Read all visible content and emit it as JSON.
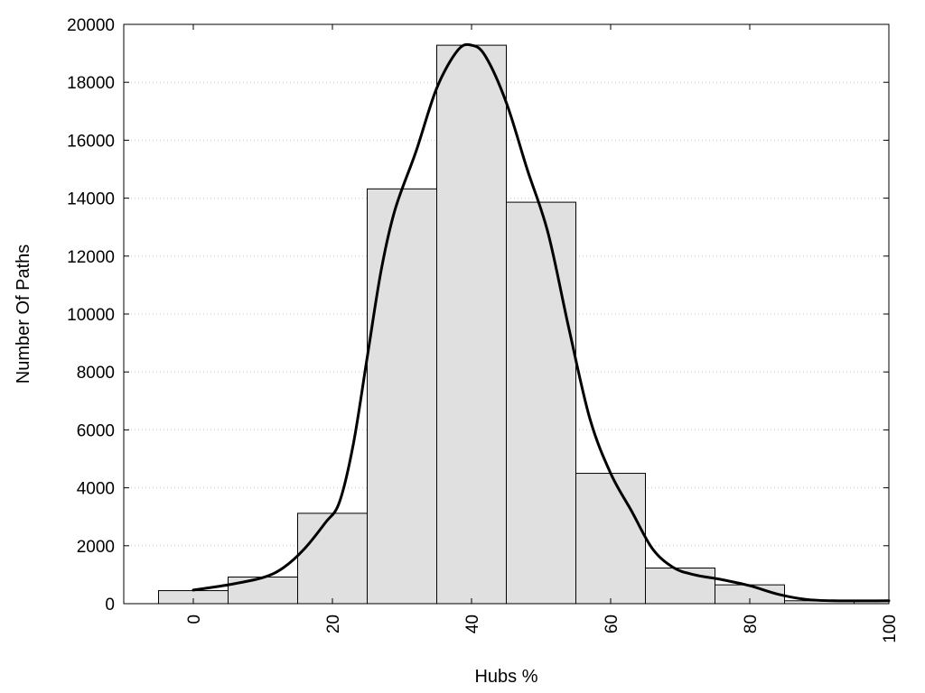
{
  "chart_data": {
    "type": "bar",
    "subtype": "histogram",
    "title": "",
    "xlabel": "Hubs %",
    "ylabel": "Number Of Paths",
    "xlim": [
      -10,
      100
    ],
    "ylim": [
      0,
      20000
    ],
    "x_ticks": [
      0,
      20,
      40,
      60,
      80,
      100
    ],
    "y_ticks": [
      0,
      2000,
      4000,
      6000,
      8000,
      10000,
      12000,
      14000,
      16000,
      18000,
      20000
    ],
    "grid": "horizontal-dotted",
    "bar_color": "#e0e0e0",
    "bar_edge_color": "#000000",
    "curve_color": "#000000",
    "bin_width": 10,
    "bins": [
      {
        "center": 0,
        "value": 450
      },
      {
        "center": 10,
        "value": 920
      },
      {
        "center": 20,
        "value": 3120
      },
      {
        "center": 30,
        "value": 14320
      },
      {
        "center": 40,
        "value": 19280
      },
      {
        "center": 50,
        "value": 13860
      },
      {
        "center": 60,
        "value": 4500
      },
      {
        "center": 70,
        "value": 1230
      },
      {
        "center": 80,
        "value": 650
      },
      {
        "center": 90,
        "value": 100
      },
      {
        "center": 100,
        "value": 100
      }
    ],
    "density_curve": [
      {
        "x": 0,
        "y": 470
      },
      {
        "x": 5,
        "y": 650
      },
      {
        "x": 10,
        "y": 900
      },
      {
        "x": 13,
        "y": 1250
      },
      {
        "x": 16,
        "y": 1900
      },
      {
        "x": 19,
        "y": 2800
      },
      {
        "x": 21,
        "y": 3500
      },
      {
        "x": 23,
        "y": 5500
      },
      {
        "x": 25,
        "y": 8500
      },
      {
        "x": 27,
        "y": 11500
      },
      {
        "x": 29,
        "y": 13600
      },
      {
        "x": 32,
        "y": 15600
      },
      {
        "x": 35,
        "y": 17800
      },
      {
        "x": 38,
        "y": 19100
      },
      {
        "x": 40,
        "y": 19280
      },
      {
        "x": 42,
        "y": 18900
      },
      {
        "x": 45,
        "y": 17300
      },
      {
        "x": 48,
        "y": 15000
      },
      {
        "x": 51,
        "y": 12800
      },
      {
        "x": 54,
        "y": 9500
      },
      {
        "x": 57,
        "y": 6400
      },
      {
        "x": 60,
        "y": 4500
      },
      {
        "x": 63,
        "y": 3200
      },
      {
        "x": 66,
        "y": 1900
      },
      {
        "x": 69,
        "y": 1250
      },
      {
        "x": 72,
        "y": 1000
      },
      {
        "x": 76,
        "y": 830
      },
      {
        "x": 80,
        "y": 620
      },
      {
        "x": 84,
        "y": 330
      },
      {
        "x": 88,
        "y": 150
      },
      {
        "x": 92,
        "y": 100
      },
      {
        "x": 100,
        "y": 100
      }
    ]
  }
}
